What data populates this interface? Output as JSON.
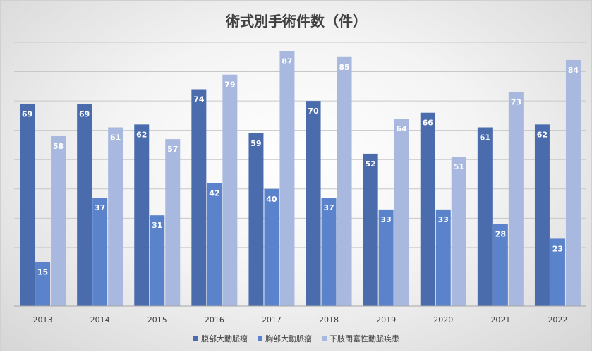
{
  "chart_data": {
    "type": "bar",
    "title": "術式別手術件数（件）",
    "xlabel": "",
    "ylabel": "",
    "categories": [
      "2013",
      "2014",
      "2015",
      "2016",
      "2017",
      "2018",
      "2019",
      "2020",
      "2021",
      "2022"
    ],
    "series": [
      {
        "name": "腹部大動脈瘤",
        "color": "#4a6cad",
        "values": [
          69,
          69,
          62,
          74,
          59,
          70,
          52,
          66,
          61,
          62
        ]
      },
      {
        "name": "胸部大動脈瘤",
        "color": "#5b83cc",
        "values": [
          15,
          37,
          31,
          42,
          40,
          37,
          33,
          33,
          28,
          23
        ]
      },
      {
        "name": "下肢閉塞性動脈疾患",
        "color": "#a9b8de",
        "values": [
          58,
          61,
          57,
          79,
          87,
          85,
          64,
          51,
          73,
          84
        ]
      }
    ],
    "ylim": [
      0,
      90
    ],
    "grid": true,
    "data_labels": true,
    "legend_position": "bottom"
  }
}
